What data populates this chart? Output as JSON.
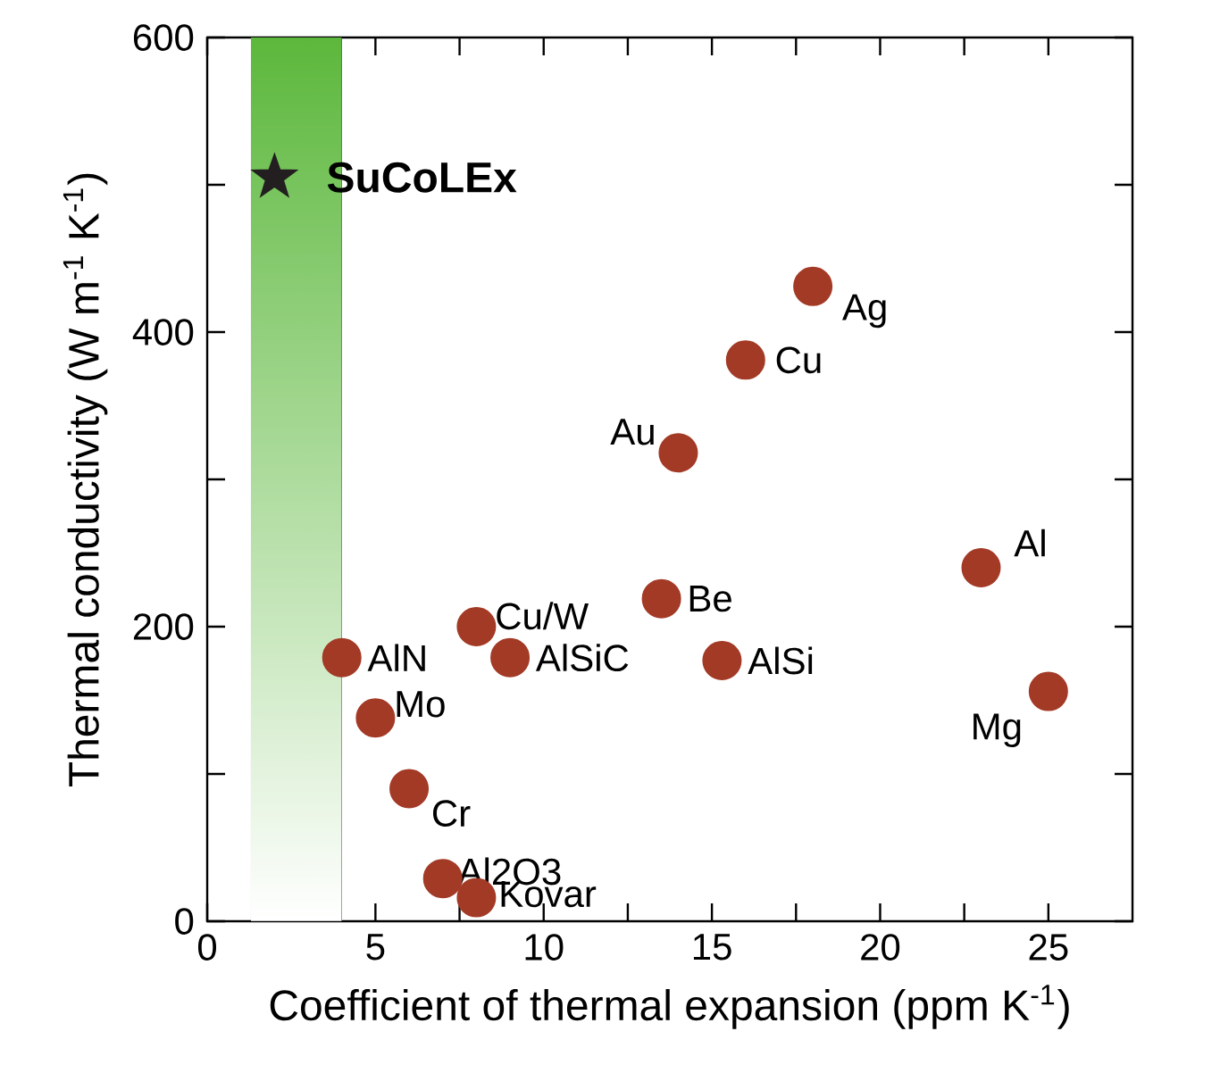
{
  "chart_data": {
    "type": "scatter",
    "xlabel": "Coefficient of thermal expansion (ppm K$^{-1}$)",
    "ylabel": "Thermal conductivity (W m$^{-1}$ K$^{-1}$)",
    "xlim": [
      0,
      27.5
    ],
    "ylim": [
      0,
      600
    ],
    "xticks": [
      0,
      {
        "value": 2.5,
        "label": null
      },
      5,
      {
        "value": 7.5,
        "label": null
      },
      10,
      {
        "value": 12.5,
        "label": null
      },
      15,
      {
        "value": 17.5,
        "label": null
      },
      20,
      {
        "value": 22.5,
        "label": null
      },
      25
    ],
    "yticks": [
      0,
      {
        "value": 100,
        "label": null
      },
      200,
      {
        "value": 300,
        "label": null
      },
      400,
      {
        "value": 500,
        "label": null
      },
      600
    ],
    "grid": false,
    "series": [
      {
        "name": "SuCoLEx",
        "marker": "star",
        "color": "#231f20",
        "x": [
          2
        ],
        "values": [
          505
        ]
      },
      {
        "marker": "circle",
        "color": "#a33a26",
        "x": [
          18,
          16,
          14,
          23,
          25,
          13.5,
          15.3,
          8,
          9,
          4,
          5,
          6,
          7,
          8
        ],
        "values": [
          431,
          381,
          318,
          240,
          156,
          219,
          177,
          200,
          179,
          179,
          138,
          90,
          29,
          16
        ]
      }
    ],
    "bands": [
      {
        "axis": "x",
        "from": 1.3,
        "to": 4,
        "color": "#5cb83c"
      }
    ],
    "annotations": [
      {
        "text": "Ag",
        "x": 18,
        "y": 431
      },
      {
        "text": "Cu",
        "x": 16,
        "y": 381
      },
      {
        "text": "Au",
        "x": 14,
        "y": 318
      },
      {
        "text": "Al",
        "x": 23,
        "y": 240
      },
      {
        "text": "Mg",
        "x": 25,
        "y": 156
      },
      {
        "text": "Be",
        "x": 13.5,
        "y": 219
      },
      {
        "text": "AlSi",
        "x": 15.3,
        "y": 177
      },
      {
        "text": "Cu/W",
        "x": 8,
        "y": 200
      },
      {
        "text": "AlSiC",
        "x": 9,
        "y": 179
      },
      {
        "text": "AlN",
        "x": 4,
        "y": 179
      },
      {
        "text": "Mo",
        "x": 5,
        "y": 138
      },
      {
        "text": "Cr",
        "x": 6,
        "y": 90
      },
      {
        "text": "Al2O3",
        "x": 7,
        "y": 29
      },
      {
        "text": "Kovar",
        "x": 8,
        "y": 16
      }
    ]
  }
}
